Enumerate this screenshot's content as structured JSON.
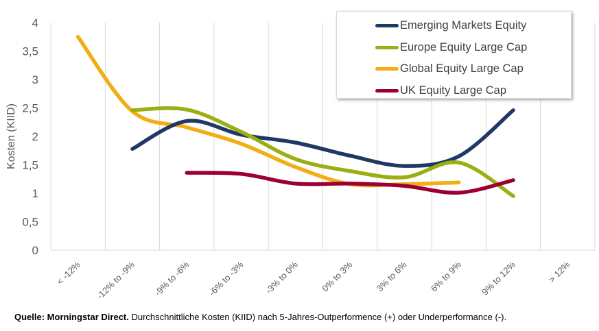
{
  "chart_data": {
    "type": "line",
    "title": "",
    "xlabel": "",
    "ylabel": "Kosten (KIID)",
    "ylim": [
      0,
      4
    ],
    "yticks": [
      "0",
      "0,5",
      "1",
      "1,5",
      "2",
      "2,5",
      "3",
      "3,5",
      "4"
    ],
    "ytick_values": [
      0,
      0.5,
      1,
      1.5,
      2,
      2.5,
      3,
      3.5,
      4
    ],
    "grid": "vertical",
    "smooth": true,
    "legend_position": "top-right",
    "categories": [
      "< -12%",
      "-12% to -9%",
      "-9% to -6%",
      "-6% to -3%",
      "-3% to 0%",
      "0% to 3%",
      "3% to 6%",
      "6% to 9%",
      "9% to 12%",
      "> 12%"
    ],
    "series": [
      {
        "name": "Emerging Markets Equity",
        "color": "#1F3864",
        "values": [
          null,
          1.78,
          2.27,
          2.03,
          1.89,
          1.66,
          1.48,
          1.65,
          2.46,
          null
        ]
      },
      {
        "name": "Europe Equity Large Cap",
        "color": "#9BAF14",
        "values": [
          null,
          2.46,
          2.47,
          2.08,
          1.6,
          1.39,
          1.28,
          1.54,
          0.95,
          null
        ]
      },
      {
        "name": "Global Equity Large Cap",
        "color": "#F2AE14",
        "values": [
          3.75,
          2.44,
          2.16,
          1.87,
          1.46,
          1.16,
          1.16,
          1.19,
          null,
          null
        ]
      },
      {
        "name": "UK Equity Large Cap",
        "color": "#9C0031",
        "values": [
          null,
          null,
          1.36,
          1.34,
          1.17,
          1.17,
          1.13,
          1.01,
          1.23,
          null
        ]
      }
    ]
  },
  "footer": {
    "source_bold": "Quelle: Morningstar Direct.",
    "description": " Durchschnittliche Kosten (KIID) nach 5-Jahres-Outperformence (+) oder Underperformance (-)."
  }
}
